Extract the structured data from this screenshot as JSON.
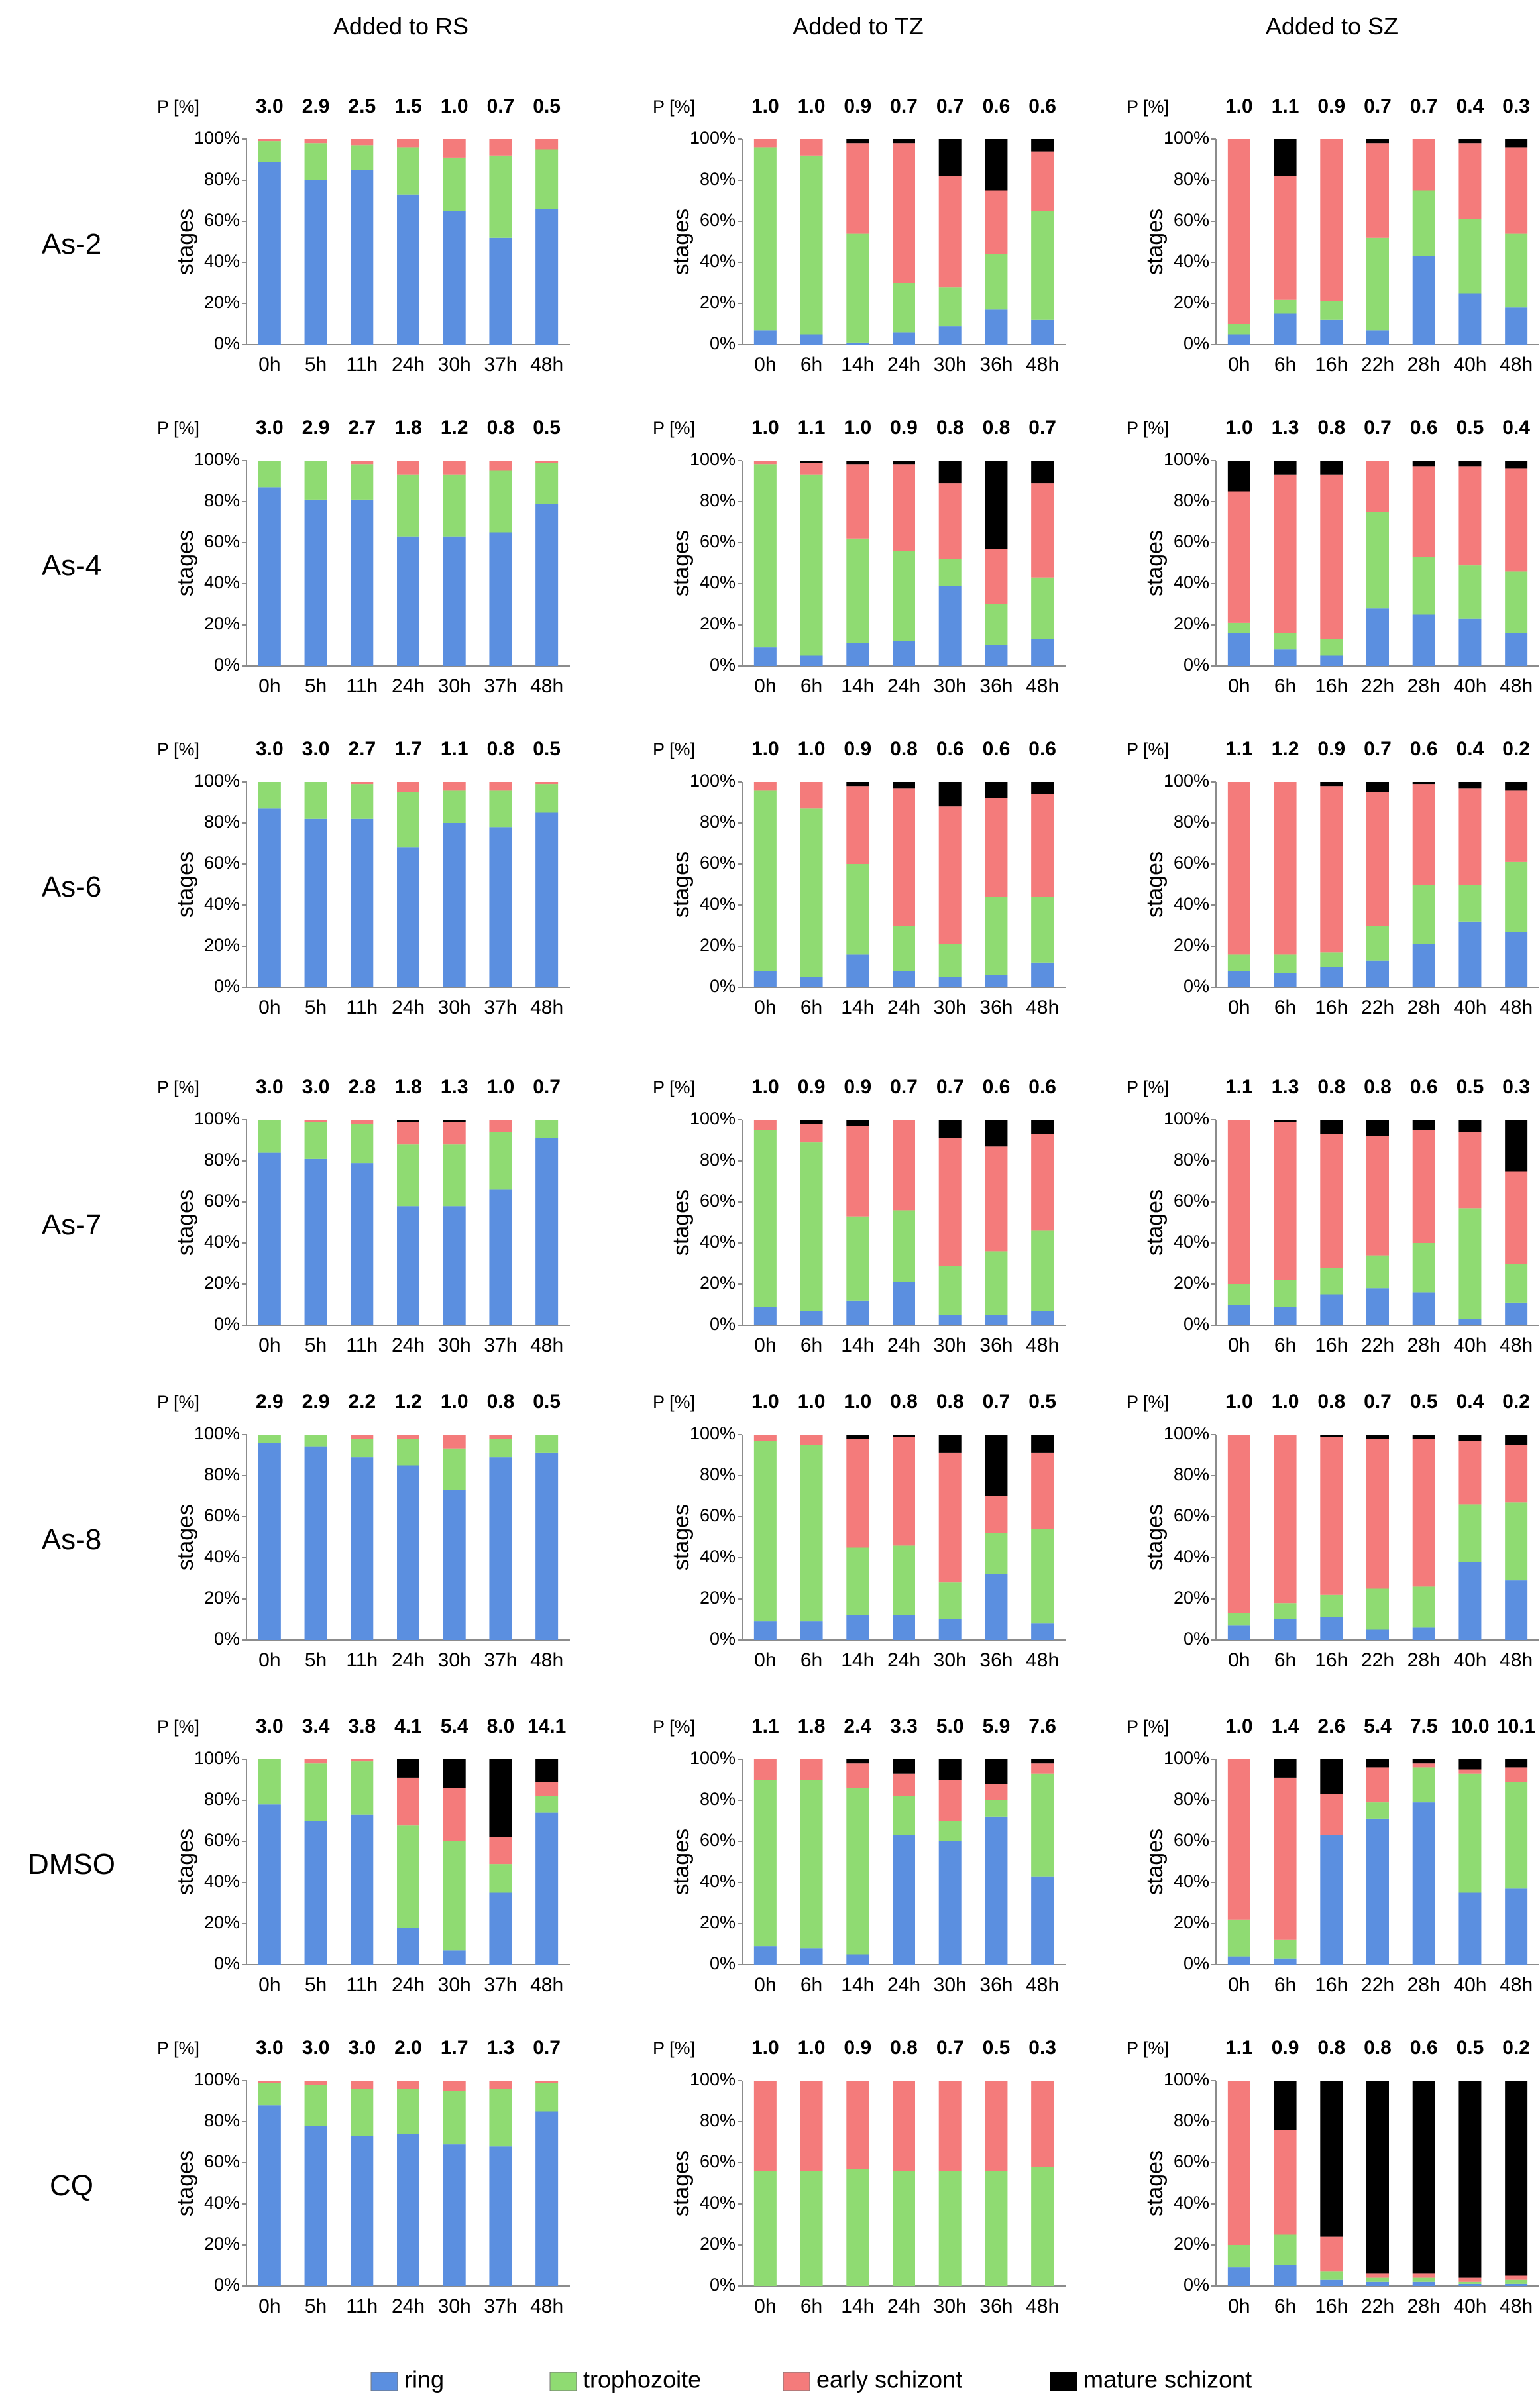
{
  "figure": {
    "column_headers": [
      "Added to RS",
      "Added to TZ",
      "Added to SZ"
    ],
    "row_labels": [
      "As-2",
      "As-4",
      "As-6",
      "As-7",
      "As-8",
      "DMSO",
      "CQ"
    ],
    "p_label": "P [%]",
    "y_axis_label": "stages",
    "y_ticks": [
      "0%",
      "20%",
      "40%",
      "60%",
      "80%",
      "100%"
    ],
    "legend": [
      {
        "name": "ring",
        "color": "#5B8FE0"
      },
      {
        "name": "trophozoite",
        "color": "#8FDB72"
      },
      {
        "name": "early schizont",
        "color": "#F47B7B"
      },
      {
        "name": "mature schizont",
        "color": "#000000"
      }
    ]
  },
  "chart_data": {
    "type": "stacked-bar",
    "series": [
      "ring",
      "trophozoite",
      "early schizont",
      "mature schizont"
    ],
    "unit": "percent of parasites",
    "ylim": [
      0,
      100
    ],
    "columns": [
      {
        "header": "Added to RS",
        "categories": [
          "0h",
          "5h",
          "11h",
          "24h",
          "30h",
          "37h",
          "48h"
        ]
      },
      {
        "header": "Added to TZ",
        "categories": [
          "0h",
          "6h",
          "14h",
          "24h",
          "30h",
          "36h",
          "48h"
        ]
      },
      {
        "header": "Added to SZ",
        "categories": [
          "0h",
          "6h",
          "16h",
          "22h",
          "28h",
          "40h",
          "48h"
        ]
      }
    ],
    "panels": [
      {
        "row": "As-2",
        "col": 0,
        "p": [
          "3.0",
          "2.9",
          "2.5",
          "1.5",
          "1.0",
          "0.7",
          "0.5"
        ],
        "bars": [
          [
            89,
            10,
            1,
            0
          ],
          [
            80,
            18,
            2,
            0
          ],
          [
            85,
            12,
            3,
            0
          ],
          [
            73,
            23,
            4,
            0
          ],
          [
            65,
            26,
            9,
            0
          ],
          [
            52,
            40,
            8,
            0
          ],
          [
            66,
            29,
            5,
            0
          ]
        ]
      },
      {
        "row": "As-2",
        "col": 1,
        "p": [
          "1.0",
          "1.0",
          "0.9",
          "0.7",
          "0.7",
          "0.6",
          "0.6"
        ],
        "bars": [
          [
            7,
            89,
            4,
            0
          ],
          [
            5,
            87,
            8,
            0
          ],
          [
            1,
            53,
            44,
            2
          ],
          [
            6,
            24,
            68,
            2
          ],
          [
            9,
            19,
            54,
            18
          ],
          [
            17,
            27,
            31,
            25
          ],
          [
            12,
            53,
            29,
            6
          ]
        ]
      },
      {
        "row": "As-2",
        "col": 2,
        "p": [
          "1.0",
          "1.1",
          "0.9",
          "0.7",
          "0.7",
          "0.4",
          "0.3"
        ],
        "bars": [
          [
            5,
            5,
            90,
            0
          ],
          [
            15,
            7,
            60,
            18
          ],
          [
            12,
            9,
            79,
            0
          ],
          [
            7,
            45,
            46,
            2
          ],
          [
            43,
            32,
            25,
            0
          ],
          [
            25,
            36,
            37,
            2
          ],
          [
            18,
            36,
            42,
            4
          ]
        ]
      },
      {
        "row": "As-4",
        "col": 0,
        "p": [
          "3.0",
          "2.9",
          "2.7",
          "1.8",
          "1.2",
          "0.8",
          "0.5"
        ],
        "bars": [
          [
            87,
            13,
            0,
            0
          ],
          [
            81,
            19,
            0,
            0
          ],
          [
            81,
            17,
            2,
            0
          ],
          [
            63,
            30,
            7,
            0
          ],
          [
            63,
            30,
            7,
            0
          ],
          [
            65,
            30,
            5,
            0
          ],
          [
            79,
            20,
            1,
            0
          ]
        ]
      },
      {
        "row": "As-4",
        "col": 1,
        "p": [
          "1.0",
          "1.1",
          "1.0",
          "0.9",
          "0.8",
          "0.8",
          "0.7"
        ],
        "bars": [
          [
            9,
            89,
            2,
            0
          ],
          [
            5,
            88,
            6,
            1
          ],
          [
            11,
            51,
            36,
            2
          ],
          [
            12,
            44,
            42,
            2
          ],
          [
            39,
            13,
            37,
            11
          ],
          [
            10,
            20,
            27,
            43
          ],
          [
            13,
            30,
            46,
            11
          ]
        ]
      },
      {
        "row": "As-4",
        "col": 2,
        "p": [
          "1.0",
          "1.3",
          "0.8",
          "0.7",
          "0.6",
          "0.5",
          "0.4"
        ],
        "bars": [
          [
            16,
            5,
            64,
            15
          ],
          [
            8,
            8,
            77,
            7
          ],
          [
            5,
            8,
            80,
            7
          ],
          [
            28,
            47,
            25,
            0
          ],
          [
            25,
            28,
            44,
            3
          ],
          [
            23,
            26,
            48,
            3
          ],
          [
            16,
            30,
            50,
            4
          ]
        ]
      },
      {
        "row": "As-6",
        "col": 0,
        "p": [
          "3.0",
          "3.0",
          "2.7",
          "1.7",
          "1.1",
          "0.8",
          "0.5"
        ],
        "bars": [
          [
            87,
            13,
            0,
            0
          ],
          [
            82,
            18,
            0,
            0
          ],
          [
            82,
            17,
            1,
            0
          ],
          [
            68,
            27,
            5,
            0
          ],
          [
            80,
            16,
            4,
            0
          ],
          [
            78,
            18,
            4,
            0
          ],
          [
            85,
            14,
            1,
            0
          ]
        ]
      },
      {
        "row": "As-6",
        "col": 1,
        "p": [
          "1.0",
          "1.0",
          "0.9",
          "0.8",
          "0.6",
          "0.6",
          "0.6"
        ],
        "bars": [
          [
            8,
            88,
            4,
            0
          ],
          [
            5,
            82,
            13,
            0
          ],
          [
            16,
            44,
            38,
            2
          ],
          [
            8,
            22,
            67,
            3
          ],
          [
            5,
            16,
            67,
            12
          ],
          [
            6,
            38,
            48,
            8
          ],
          [
            12,
            32,
            50,
            6
          ]
        ]
      },
      {
        "row": "As-6",
        "col": 2,
        "p": [
          "1.1",
          "1.2",
          "0.9",
          "0.7",
          "0.6",
          "0.4",
          "0.2"
        ],
        "bars": [
          [
            8,
            8,
            84,
            0
          ],
          [
            7,
            9,
            84,
            0
          ],
          [
            10,
            7,
            81,
            2
          ],
          [
            13,
            17,
            65,
            5
          ],
          [
            21,
            29,
            49,
            1
          ],
          [
            32,
            18,
            47,
            3
          ],
          [
            27,
            34,
            35,
            4
          ]
        ]
      },
      {
        "row": "As-7",
        "col": 0,
        "p": [
          "3.0",
          "3.0",
          "2.8",
          "1.8",
          "1.3",
          "1.0",
          "0.7"
        ],
        "bars": [
          [
            84,
            16,
            0,
            0
          ],
          [
            81,
            18,
            1,
            0
          ],
          [
            79,
            19,
            2,
            0
          ],
          [
            58,
            30,
            11,
            1
          ],
          [
            58,
            30,
            11,
            1
          ],
          [
            66,
            28,
            6,
            0
          ],
          [
            91,
            9,
            0,
            0
          ]
        ]
      },
      {
        "row": "As-7",
        "col": 1,
        "p": [
          "1.0",
          "0.9",
          "0.9",
          "0.7",
          "0.7",
          "0.6",
          "0.6"
        ],
        "bars": [
          [
            9,
            86,
            5,
            0
          ],
          [
            7,
            82,
            9,
            2
          ],
          [
            12,
            41,
            44,
            3
          ],
          [
            21,
            35,
            44,
            0
          ],
          [
            5,
            24,
            62,
            9
          ],
          [
            5,
            31,
            51,
            13
          ],
          [
            7,
            39,
            47,
            7
          ]
        ]
      },
      {
        "row": "As-7",
        "col": 2,
        "p": [
          "1.1",
          "1.3",
          "0.8",
          "0.8",
          "0.6",
          "0.5",
          "0.3"
        ],
        "bars": [
          [
            10,
            10,
            80,
            0
          ],
          [
            9,
            13,
            77,
            1
          ],
          [
            15,
            13,
            65,
            7
          ],
          [
            18,
            16,
            58,
            8
          ],
          [
            16,
            24,
            55,
            5
          ],
          [
            3,
            54,
            37,
            6
          ],
          [
            11,
            19,
            45,
            25
          ]
        ]
      },
      {
        "row": "As-8",
        "col": 0,
        "p": [
          "2.9",
          "2.9",
          "2.2",
          "1.2",
          "1.0",
          "0.8",
          "0.5"
        ],
        "bars": [
          [
            96,
            4,
            0,
            0
          ],
          [
            94,
            6,
            0,
            0
          ],
          [
            89,
            9,
            2,
            0
          ],
          [
            85,
            13,
            2,
            0
          ],
          [
            73,
            20,
            7,
            0
          ],
          [
            89,
            9,
            2,
            0
          ],
          [
            91,
            9,
            0,
            0
          ]
        ]
      },
      {
        "row": "As-8",
        "col": 1,
        "p": [
          "1.0",
          "1.0",
          "1.0",
          "0.8",
          "0.8",
          "0.7",
          "0.5"
        ],
        "bars": [
          [
            9,
            88,
            3,
            0
          ],
          [
            9,
            86,
            5,
            0
          ],
          [
            12,
            33,
            53,
            2
          ],
          [
            12,
            34,
            53,
            1
          ],
          [
            10,
            18,
            63,
            9
          ],
          [
            32,
            20,
            18,
            30
          ],
          [
            8,
            46,
            37,
            9
          ]
        ]
      },
      {
        "row": "As-8",
        "col": 2,
        "p": [
          "1.0",
          "1.0",
          "0.8",
          "0.7",
          "0.5",
          "0.4",
          "0.2"
        ],
        "bars": [
          [
            7,
            6,
            87,
            0
          ],
          [
            10,
            8,
            82,
            0
          ],
          [
            11,
            11,
            77,
            1
          ],
          [
            5,
            20,
            73,
            2
          ],
          [
            6,
            20,
            72,
            2
          ],
          [
            38,
            28,
            31,
            3
          ],
          [
            29,
            38,
            28,
            5
          ]
        ]
      },
      {
        "row": "DMSO",
        "col": 0,
        "p": [
          "3.0",
          "3.4",
          "3.8",
          "4.1",
          "5.4",
          "8.0",
          "14.1"
        ],
        "bars": [
          [
            78,
            22,
            0,
            0
          ],
          [
            70,
            28,
            2,
            0
          ],
          [
            73,
            26,
            1,
            0
          ],
          [
            18,
            50,
            23,
            9
          ],
          [
            7,
            53,
            26,
            14
          ],
          [
            35,
            14,
            13,
            38
          ],
          [
            74,
            8,
            7,
            11
          ]
        ]
      },
      {
        "row": "DMSO",
        "col": 1,
        "p": [
          "1.1",
          "1.8",
          "2.4",
          "3.3",
          "5.0",
          "5.9",
          "7.6"
        ],
        "bars": [
          [
            9,
            81,
            10,
            0
          ],
          [
            8,
            82,
            10,
            0
          ],
          [
            5,
            81,
            12,
            2
          ],
          [
            63,
            19,
            11,
            7
          ],
          [
            60,
            10,
            20,
            10
          ],
          [
            72,
            8,
            8,
            12
          ],
          [
            43,
            50,
            5,
            2
          ]
        ]
      },
      {
        "row": "DMSO",
        "col": 2,
        "p": [
          "1.0",
          "1.4",
          "2.6",
          "5.4",
          "7.5",
          "10.0",
          "10.1"
        ],
        "bars": [
          [
            4,
            18,
            78,
            0
          ],
          [
            3,
            9,
            79,
            9
          ],
          [
            63,
            0,
            20,
            17
          ],
          [
            71,
            8,
            17,
            4
          ],
          [
            79,
            17,
            2,
            2
          ],
          [
            35,
            58,
            2,
            5
          ],
          [
            37,
            52,
            7,
            4
          ]
        ]
      },
      {
        "row": "CQ",
        "col": 0,
        "p": [
          "3.0",
          "3.0",
          "3.0",
          "2.0",
          "1.7",
          "1.3",
          "0.7"
        ],
        "bars": [
          [
            88,
            11,
            1,
            0
          ],
          [
            78,
            20,
            2,
            0
          ],
          [
            73,
            23,
            4,
            0
          ],
          [
            74,
            22,
            4,
            0
          ],
          [
            69,
            26,
            5,
            0
          ],
          [
            68,
            28,
            4,
            0
          ],
          [
            85,
            14,
            1,
            0
          ]
        ]
      },
      {
        "row": "CQ",
        "col": 1,
        "p": [
          "1.0",
          "1.0",
          "0.9",
          "0.8",
          "0.7",
          "0.5",
          "0.3"
        ],
        "bars": [
          [
            0,
            56,
            44,
            0
          ],
          [
            0,
            56,
            44,
            0
          ],
          [
            0,
            57,
            43,
            0
          ],
          [
            0,
            56,
            44,
            0
          ],
          [
            0,
            56,
            44,
            0
          ],
          [
            0,
            56,
            44,
            0
          ],
          [
            0,
            58,
            42,
            0
          ]
        ]
      },
      {
        "row": "CQ",
        "col": 2,
        "p": [
          "1.1",
          "0.9",
          "0.8",
          "0.8",
          "0.6",
          "0.5",
          "0.2"
        ],
        "bars": [
          [
            9,
            11,
            80,
            0
          ],
          [
            10,
            15,
            51,
            24
          ],
          [
            3,
            4,
            17,
            76
          ],
          [
            2,
            2,
            2,
            94
          ],
          [
            2,
            2,
            2,
            94
          ],
          [
            1,
            1,
            2,
            96
          ],
          [
            1,
            2,
            2,
            95
          ]
        ]
      }
    ]
  }
}
